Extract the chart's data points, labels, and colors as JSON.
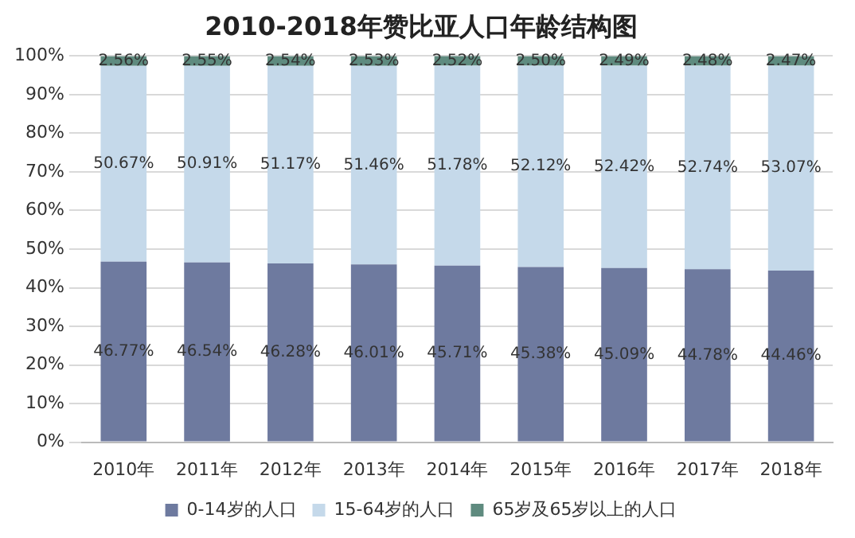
{
  "chart_data": {
    "type": "bar",
    "title": "2010-2018年赞比亚人口年龄结构图",
    "stacked": true,
    "categories": [
      "2010年",
      "2011年",
      "2012年",
      "2013年",
      "2014年",
      "2015年",
      "2016年",
      "2017年",
      "2018年"
    ],
    "series": [
      {
        "name": "0-14岁的人口",
        "color": "#6e7a9f",
        "values": [
          46.77,
          46.54,
          46.28,
          46.01,
          45.71,
          45.38,
          45.09,
          44.78,
          44.46
        ],
        "value_labels": [
          "46.77%",
          "46.54%",
          "46.28%",
          "46.01%",
          "45.71%",
          "45.38%",
          "45.09%",
          "44.78%",
          "44.46%"
        ]
      },
      {
        "name": "15-64岁的人口",
        "color": "#c5d9ea",
        "values": [
          50.67,
          50.91,
          51.17,
          51.46,
          51.78,
          52.12,
          52.42,
          52.74,
          53.07
        ],
        "value_labels": [
          "50.67%",
          "50.91%",
          "51.17%",
          "51.46%",
          "51.78%",
          "52.12%",
          "52.42%",
          "52.74%",
          "53.07%"
        ]
      },
      {
        "name": "65岁及65岁以上的人口",
        "color": "#5f8b7f",
        "values": [
          2.56,
          2.55,
          2.54,
          2.53,
          2.52,
          2.5,
          2.49,
          2.48,
          2.47
        ],
        "value_labels": [
          "2.56%",
          "2.55%",
          "2.54%",
          "2.53%",
          "2.52%",
          "2.50%",
          "2.49%",
          "2.48%",
          "2.47%"
        ]
      }
    ],
    "ylim": [
      0,
      100
    ],
    "yticks": [
      {
        "value": 0,
        "label": "0%"
      },
      {
        "value": 10,
        "label": "10%"
      },
      {
        "value": 20,
        "label": "20%"
      },
      {
        "value": 30,
        "label": "30%"
      },
      {
        "value": 40,
        "label": "40%"
      },
      {
        "value": 50,
        "label": "50%"
      },
      {
        "value": 60,
        "label": "60%"
      },
      {
        "value": 70,
        "label": "70%"
      },
      {
        "value": 80,
        "label": "80%"
      },
      {
        "value": 90,
        "label": "90%"
      },
      {
        "value": 100,
        "label": "100%"
      }
    ],
    "grid": "y",
    "legend": "bottom"
  }
}
